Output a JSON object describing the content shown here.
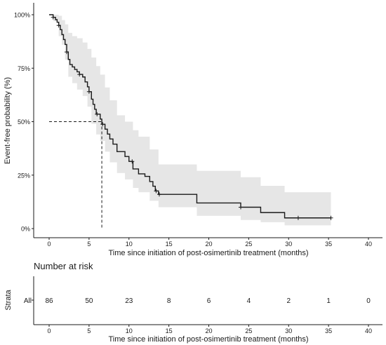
{
  "chart_data": [
    {
      "type": "line",
      "subtype": "kaplan-meier",
      "title": "",
      "xlabel": "Time since initiation of post-osimertinib treatment (months)",
      "ylabel": "Event-free probability (%)",
      "xlim": [
        -2,
        42
      ],
      "ylim": [
        -0.05,
        1.03
      ],
      "xticks": [
        0,
        5,
        10,
        15,
        20,
        25,
        30,
        35,
        40
      ],
      "xtick_labels": [
        "0",
        "5",
        "10",
        "15",
        "20",
        "25",
        "30",
        "35",
        "40"
      ],
      "yticks": [
        0,
        0.25,
        0.5,
        0.75,
        1.0
      ],
      "ytick_labels": [
        "0%",
        "25%",
        "50%",
        "75%",
        "100%"
      ],
      "grid": false,
      "series": [
        {
          "color": "#1a1a1a",
          "ci_color": "#e6e6e6",
          "steps": [
            [
              0,
              1.0
            ],
            [
              0.5,
              0.988
            ],
            [
              0.8,
              0.977
            ],
            [
              1.0,
              0.965
            ],
            [
              1.2,
              0.95
            ],
            [
              1.4,
              0.93
            ],
            [
              1.6,
              0.907
            ],
            [
              1.8,
              0.884
            ],
            [
              2.0,
              0.861
            ],
            [
              2.2,
              0.826
            ],
            [
              2.4,
              0.791
            ],
            [
              2.6,
              0.767
            ],
            [
              2.9,
              0.756
            ],
            [
              3.2,
              0.744
            ],
            [
              3.5,
              0.733
            ],
            [
              3.8,
              0.721
            ],
            [
              4.2,
              0.709
            ],
            [
              4.5,
              0.686
            ],
            [
              4.8,
              0.663
            ],
            [
              5.0,
              0.64
            ],
            [
              5.3,
              0.605
            ],
            [
              5.5,
              0.581
            ],
            [
              5.7,
              0.558
            ],
            [
              5.9,
              0.535
            ],
            [
              6.4,
              0.512
            ],
            [
              6.6,
              0.488
            ],
            [
              7.0,
              0.465
            ],
            [
              7.3,
              0.442
            ],
            [
              7.6,
              0.419
            ],
            [
              8.0,
              0.395
            ],
            [
              8.5,
              0.36
            ],
            [
              9.5,
              0.337
            ],
            [
              10.0,
              0.314
            ],
            [
              10.5,
              0.279
            ],
            [
              11.2,
              0.256
            ],
            [
              12.0,
              0.244
            ],
            [
              12.6,
              0.22
            ],
            [
              13.0,
              0.198
            ],
            [
              13.3,
              0.176
            ],
            [
              13.7,
              0.16
            ],
            [
              18.5,
              0.12
            ],
            [
              24.0,
              0.1
            ],
            [
              26.5,
              0.075
            ],
            [
              29.5,
              0.05
            ],
            [
              35.3,
              0.05
            ]
          ],
          "ci_upper": [
            [
              0,
              1.0
            ],
            [
              0.5,
              1.0
            ],
            [
              1.2,
              0.995
            ],
            [
              1.6,
              0.975
            ],
            [
              2.0,
              0.955
            ],
            [
              2.4,
              0.915
            ],
            [
              2.9,
              0.9
            ],
            [
              3.5,
              0.89
            ],
            [
              4.2,
              0.87
            ],
            [
              4.8,
              0.84
            ],
            [
              5.3,
              0.8
            ],
            [
              5.9,
              0.76
            ],
            [
              6.4,
              0.72
            ],
            [
              7.0,
              0.66
            ],
            [
              7.6,
              0.6
            ],
            [
              8.5,
              0.53
            ],
            [
              9.5,
              0.5
            ],
            [
              10.5,
              0.46
            ],
            [
              11.2,
              0.43
            ],
            [
              12.6,
              0.37
            ],
            [
              13.7,
              0.3
            ],
            [
              18.5,
              0.27
            ],
            [
              24.0,
              0.24
            ],
            [
              26.5,
              0.2
            ],
            [
              29.5,
              0.17
            ],
            [
              35.3,
              0.17
            ]
          ],
          "ci_lower": [
            [
              0,
              1.0
            ],
            [
              0.5,
              0.97
            ],
            [
              1.2,
              0.9
            ],
            [
              1.6,
              0.86
            ],
            [
              2.0,
              0.79
            ],
            [
              2.4,
              0.71
            ],
            [
              2.9,
              0.68
            ],
            [
              3.5,
              0.65
            ],
            [
              4.2,
              0.62
            ],
            [
              4.8,
              0.57
            ],
            [
              5.3,
              0.49
            ],
            [
              5.9,
              0.44
            ],
            [
              6.4,
              0.41
            ],
            [
              7.0,
              0.36
            ],
            [
              7.6,
              0.31
            ],
            [
              8.5,
              0.26
            ],
            [
              9.5,
              0.23
            ],
            [
              10.5,
              0.19
            ],
            [
              11.2,
              0.17
            ],
            [
              12.6,
              0.13
            ],
            [
              13.7,
              0.1
            ],
            [
              18.5,
              0.06
            ],
            [
              24.0,
              0.04
            ],
            [
              26.5,
              0.03
            ],
            [
              29.5,
              0.015
            ],
            [
              35.3,
              0.015
            ]
          ],
          "censored": [
            [
              0.5,
              0.988
            ],
            [
              1.2,
              0.95
            ],
            [
              2.2,
              0.826
            ],
            [
              3.8,
              0.721
            ],
            [
              5.0,
              0.64
            ],
            [
              6.0,
              0.535
            ],
            [
              6.7,
              0.488
            ],
            [
              10.4,
              0.314
            ],
            [
              13.4,
              0.176
            ],
            [
              13.8,
              0.16
            ],
            [
              24.0,
              0.1
            ],
            [
              31.2,
              0.05
            ],
            [
              35.3,
              0.05
            ]
          ]
        }
      ],
      "median": {
        "x": 6.6,
        "y": 0.5
      }
    },
    {
      "type": "table",
      "title": "Number at risk",
      "ylabel": "Strata",
      "row_label": "All",
      "xlabel": "Time since initiation of post-osimertinib treatment (months)",
      "times": [
        0,
        5,
        10,
        15,
        20,
        25,
        30,
        35,
        40
      ],
      "xtick_labels": [
        "0",
        "5",
        "10",
        "15",
        "20",
        "25",
        "30",
        "35",
        "40"
      ],
      "values": [
        "86",
        "50",
        "23",
        "8",
        "6",
        "4",
        "2",
        "1",
        "0"
      ]
    }
  ]
}
